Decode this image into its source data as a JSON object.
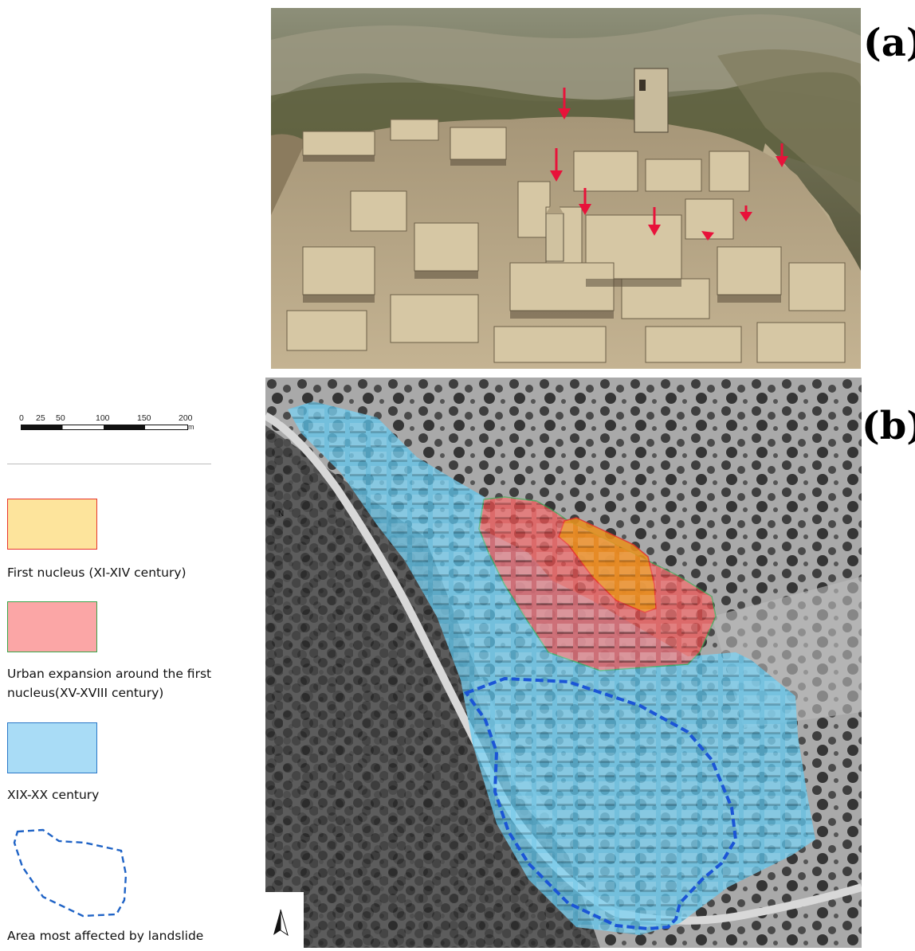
{
  "panels": {
    "a_label": "(a)",
    "b_label": "(b)"
  },
  "scale_bar": {
    "ticks": [
      "0",
      "25",
      "50",
      "100",
      "150",
      "200"
    ],
    "unit": "m"
  },
  "north_arrow": {
    "label": "N"
  },
  "legend": [
    {
      "text": "First nucleus (XI-XIV century)",
      "fill": "#fde49c",
      "stroke": "#e8342c"
    },
    {
      "text_line1": "Urban expansion around the first",
      "text_line2": "nucleus(XV-XVIII century)",
      "fill": "#fba6a6",
      "stroke": "#3aa54a"
    },
    {
      "text": "XIX-XX century",
      "fill": "#a9dcf6",
      "stroke": "#2a78c8"
    },
    {
      "text": "Area  most affected by landslide",
      "stroke": "#1f63c6"
    }
  ],
  "map_colors": {
    "first_nucleus": "#e8901e",
    "urban_expansion": "#f05252",
    "xix_xx": "#5ec8f0",
    "landslide": "#1b55d6",
    "arrows": "#e8123a"
  }
}
